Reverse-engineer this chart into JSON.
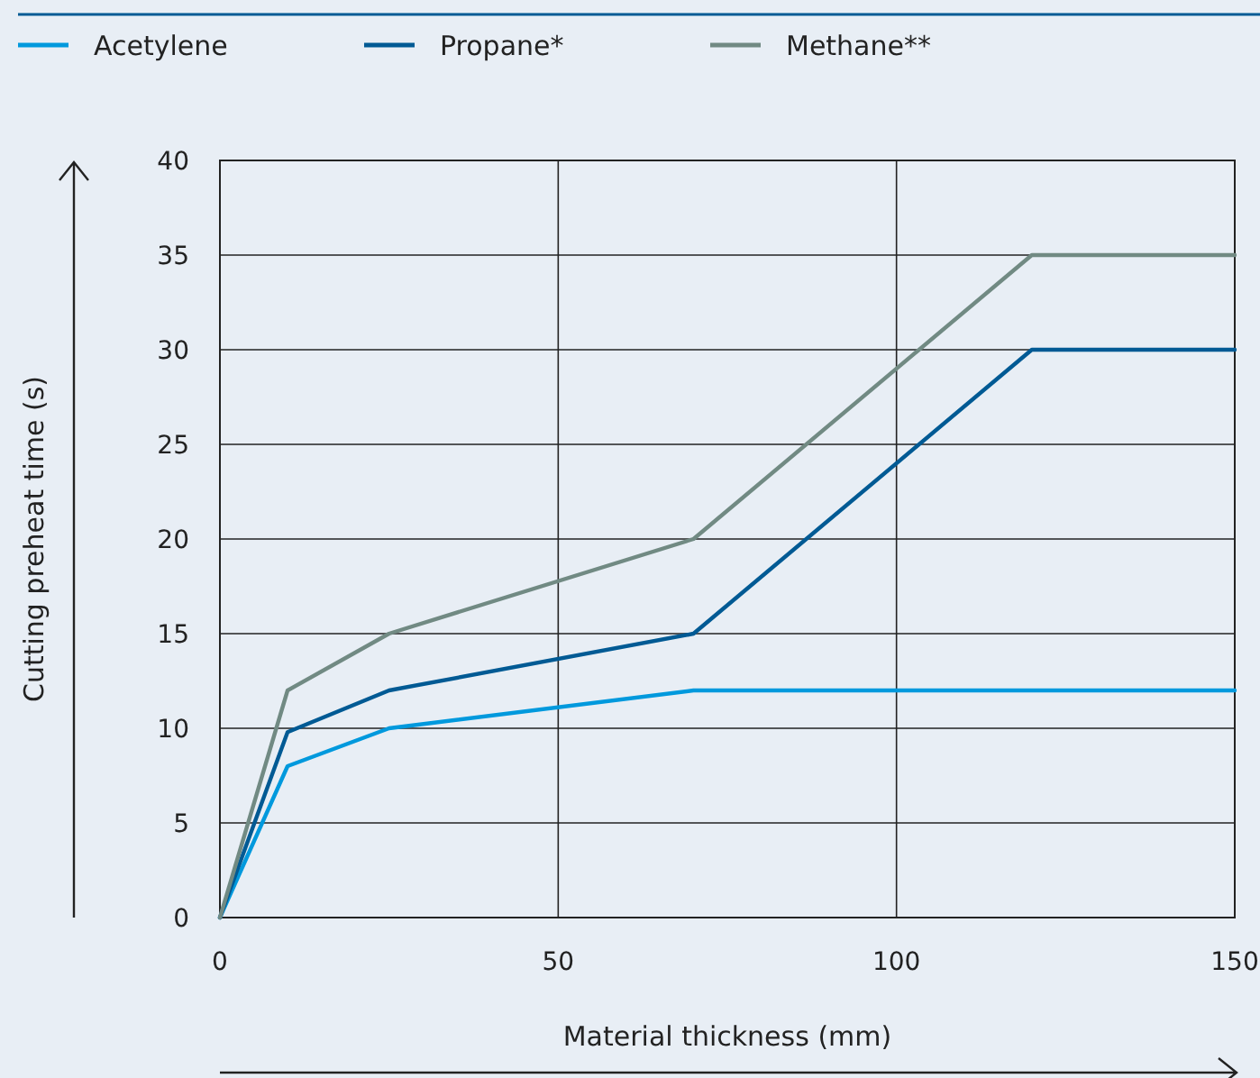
{
  "chart_data": {
    "type": "line",
    "xlabel": "Material thickness (mm)",
    "ylabel": "Cutting preheat time (s)",
    "x": [
      0,
      10,
      25,
      70,
      120,
      150
    ],
    "series": [
      {
        "name": "Acetylene",
        "color": "#0099dd",
        "values": [
          0,
          8,
          10,
          12,
          12,
          12
        ]
      },
      {
        "name": "Propane*",
        "color": "#005a94",
        "values": [
          0,
          9.8,
          12,
          15,
          30,
          30
        ]
      },
      {
        "name": "Methane**",
        "color": "#718a83",
        "values": [
          0,
          12,
          15,
          20,
          35,
          35
        ]
      }
    ],
    "xlim": [
      0,
      150
    ],
    "xticks": [
      0,
      50,
      100,
      150
    ],
    "ylim": [
      0,
      40
    ],
    "yticks": [
      0,
      5,
      10,
      15,
      20,
      25,
      30,
      35,
      40
    ],
    "grid": true,
    "legend": "top",
    "marker": "none",
    "line_style": "solid"
  }
}
